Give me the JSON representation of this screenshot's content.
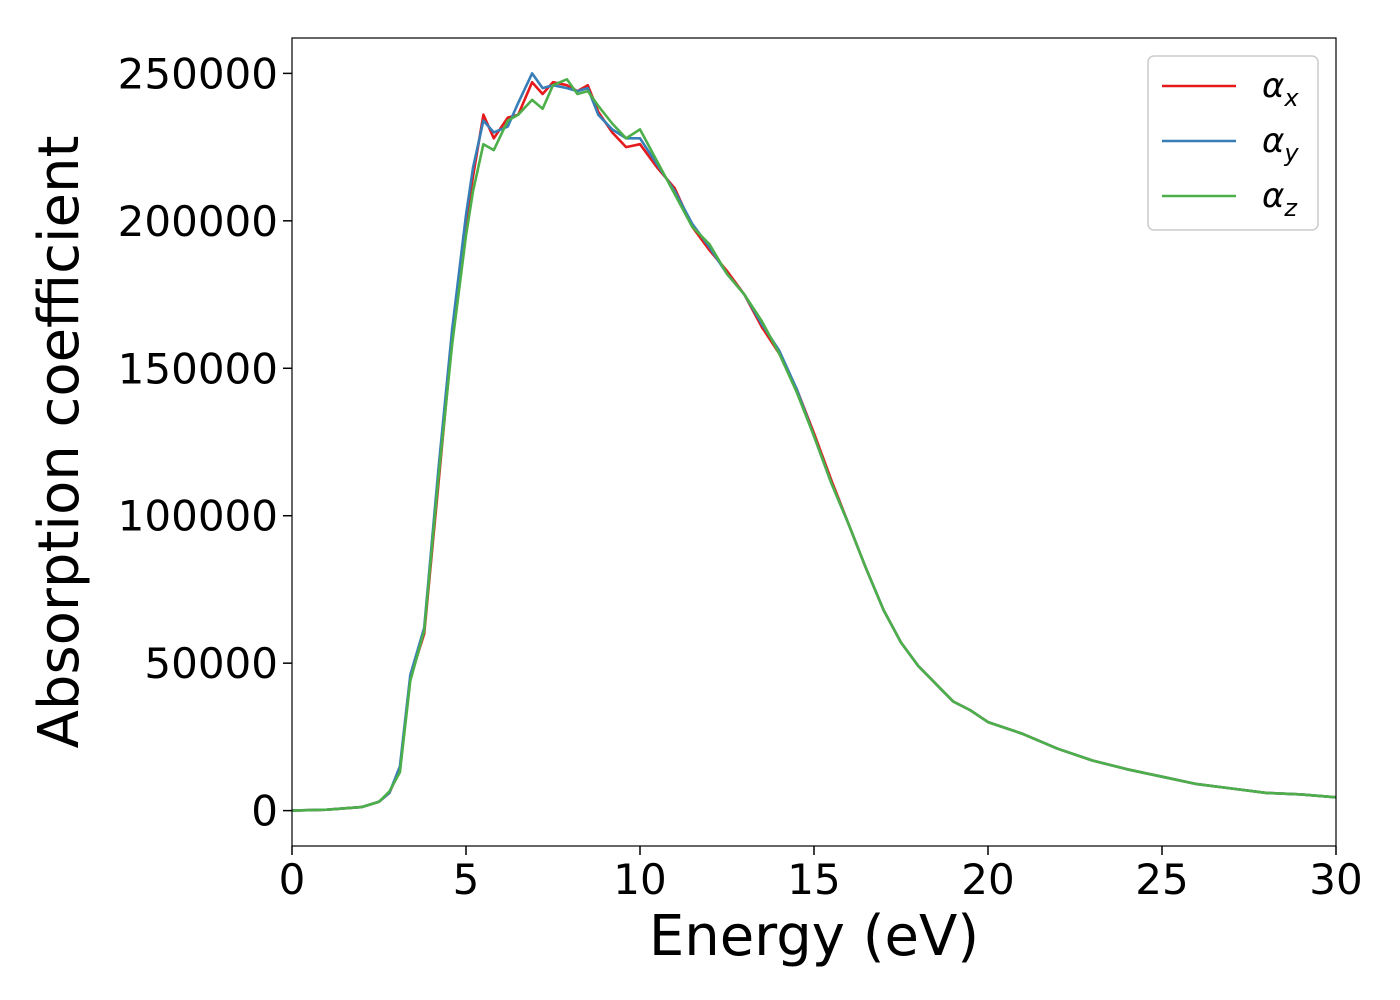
{
  "chart_data": {
    "type": "line",
    "xlabel": "Energy (eV)",
    "ylabel": "Absorption coefficient",
    "xlim": [
      0,
      30
    ],
    "ylim": [
      -12000,
      262000
    ],
    "xticks": [
      0,
      5,
      10,
      15,
      20,
      25,
      30
    ],
    "yticks": [
      0,
      50000,
      100000,
      150000,
      200000,
      250000
    ],
    "grid": false,
    "legend_position": "top-right",
    "series": [
      {
        "name": "α",
        "subscript": "x",
        "color": "#e41a1c",
        "points": [
          [
            0,
            0
          ],
          [
            1,
            300
          ],
          [
            2,
            1200
          ],
          [
            2.5,
            3000
          ],
          [
            2.8,
            6000
          ],
          [
            3.1,
            14000
          ],
          [
            3.4,
            45000
          ],
          [
            3.8,
            60000
          ],
          [
            4.2,
            110000
          ],
          [
            4.6,
            160000
          ],
          [
            5.0,
            200000
          ],
          [
            5.2,
            215000
          ],
          [
            5.5,
            236000
          ],
          [
            5.8,
            228000
          ],
          [
            6.2,
            235000
          ],
          [
            6.5,
            236000
          ],
          [
            6.9,
            247000
          ],
          [
            7.2,
            243000
          ],
          [
            7.5,
            247000
          ],
          [
            7.9,
            246000
          ],
          [
            8.2,
            244000
          ],
          [
            8.5,
            246000
          ],
          [
            8.8,
            237000
          ],
          [
            9.2,
            230000
          ],
          [
            9.6,
            225000
          ],
          [
            10.0,
            226000
          ],
          [
            10.5,
            218000
          ],
          [
            11.0,
            211000
          ],
          [
            11.5,
            198000
          ],
          [
            12.0,
            190000
          ],
          [
            12.5,
            183000
          ],
          [
            13.0,
            175000
          ],
          [
            13.5,
            164000
          ],
          [
            14.0,
            155000
          ],
          [
            14.5,
            143000
          ],
          [
            15.0,
            128000
          ],
          [
            15.5,
            112000
          ],
          [
            16.0,
            97000
          ],
          [
            16.5,
            82000
          ],
          [
            17.0,
            68000
          ],
          [
            17.5,
            57000
          ],
          [
            18.0,
            49000
          ],
          [
            18.5,
            43000
          ],
          [
            19.0,
            37000
          ],
          [
            19.5,
            34000
          ],
          [
            20.0,
            30000
          ],
          [
            21.0,
            26000
          ],
          [
            22.0,
            21000
          ],
          [
            23.0,
            17000
          ],
          [
            24.0,
            14000
          ],
          [
            25.0,
            11500
          ],
          [
            26.0,
            9000
          ],
          [
            27.0,
            7500
          ],
          [
            28.0,
            6000
          ],
          [
            29.0,
            5500
          ],
          [
            30.0,
            4500
          ]
        ]
      },
      {
        "name": "α",
        "subscript": "y",
        "color": "#377eb8",
        "points": [
          [
            0,
            0
          ],
          [
            1,
            300
          ],
          [
            2,
            1200
          ],
          [
            2.5,
            3000
          ],
          [
            2.8,
            6000
          ],
          [
            3.1,
            15000
          ],
          [
            3.4,
            46000
          ],
          [
            3.8,
            62000
          ],
          [
            4.2,
            115000
          ],
          [
            4.6,
            163000
          ],
          [
            5.0,
            202000
          ],
          [
            5.2,
            218000
          ],
          [
            5.5,
            234000
          ],
          [
            5.8,
            230000
          ],
          [
            6.2,
            232000
          ],
          [
            6.5,
            240000
          ],
          [
            6.9,
            250000
          ],
          [
            7.2,
            245000
          ],
          [
            7.5,
            246000
          ],
          [
            7.9,
            245000
          ],
          [
            8.2,
            244000
          ],
          [
            8.5,
            245000
          ],
          [
            8.8,
            236000
          ],
          [
            9.2,
            231000
          ],
          [
            9.6,
            228000
          ],
          [
            10.0,
            228000
          ],
          [
            10.5,
            219000
          ],
          [
            11.0,
            210000
          ],
          [
            11.5,
            199000
          ],
          [
            12.0,
            191000
          ],
          [
            12.5,
            182000
          ],
          [
            13.0,
            175000
          ],
          [
            13.5,
            165000
          ],
          [
            14.0,
            156000
          ],
          [
            14.5,
            143000
          ],
          [
            15.0,
            127000
          ],
          [
            15.5,
            111000
          ],
          [
            16.0,
            97000
          ],
          [
            16.5,
            82000
          ],
          [
            17.0,
            68000
          ],
          [
            17.5,
            57000
          ],
          [
            18.0,
            49000
          ],
          [
            18.5,
            43000
          ],
          [
            19.0,
            37000
          ],
          [
            19.5,
            34000
          ],
          [
            20.0,
            30000
          ],
          [
            21.0,
            26000
          ],
          [
            22.0,
            21000
          ],
          [
            23.0,
            17000
          ],
          [
            24.0,
            14000
          ],
          [
            25.0,
            11500
          ],
          [
            26.0,
            9000
          ],
          [
            27.0,
            7500
          ],
          [
            28.0,
            6000
          ],
          [
            29.0,
            5500
          ],
          [
            30.0,
            4500
          ]
        ]
      },
      {
        "name": "α",
        "subscript": "z",
        "color": "#4daf4a",
        "points": [
          [
            0,
            0
          ],
          [
            1,
            300
          ],
          [
            2,
            1200
          ],
          [
            2.5,
            3000
          ],
          [
            2.8,
            6500
          ],
          [
            3.1,
            13000
          ],
          [
            3.4,
            44000
          ],
          [
            3.8,
            61000
          ],
          [
            4.2,
            112000
          ],
          [
            4.6,
            158000
          ],
          [
            5.0,
            195000
          ],
          [
            5.2,
            210000
          ],
          [
            5.5,
            226000
          ],
          [
            5.8,
            224000
          ],
          [
            6.2,
            234000
          ],
          [
            6.5,
            236000
          ],
          [
            6.9,
            241000
          ],
          [
            7.2,
            238000
          ],
          [
            7.5,
            246000
          ],
          [
            7.9,
            248000
          ],
          [
            8.2,
            243000
          ],
          [
            8.5,
            244000
          ],
          [
            8.8,
            239000
          ],
          [
            9.2,
            233000
          ],
          [
            9.6,
            228000
          ],
          [
            10.0,
            231000
          ],
          [
            10.5,
            220000
          ],
          [
            11.0,
            209000
          ],
          [
            11.5,
            198000
          ],
          [
            12.0,
            192000
          ],
          [
            12.5,
            182000
          ],
          [
            13.0,
            175000
          ],
          [
            13.5,
            166000
          ],
          [
            14.0,
            155000
          ],
          [
            14.5,
            142000
          ],
          [
            15.0,
            127000
          ],
          [
            15.5,
            111000
          ],
          [
            16.0,
            97000
          ],
          [
            16.5,
            82000
          ],
          [
            17.0,
            68000
          ],
          [
            17.5,
            57000
          ],
          [
            18.0,
            49000
          ],
          [
            18.5,
            43000
          ],
          [
            19.0,
            37000
          ],
          [
            19.5,
            34000
          ],
          [
            20.0,
            30000
          ],
          [
            21.0,
            26000
          ],
          [
            22.0,
            21000
          ],
          [
            23.0,
            17000
          ],
          [
            24.0,
            14000
          ],
          [
            25.0,
            11500
          ],
          [
            26.0,
            9000
          ],
          [
            27.0,
            7500
          ],
          [
            28.0,
            6000
          ],
          [
            29.0,
            5500
          ],
          [
            30.0,
            4500
          ]
        ]
      }
    ]
  }
}
